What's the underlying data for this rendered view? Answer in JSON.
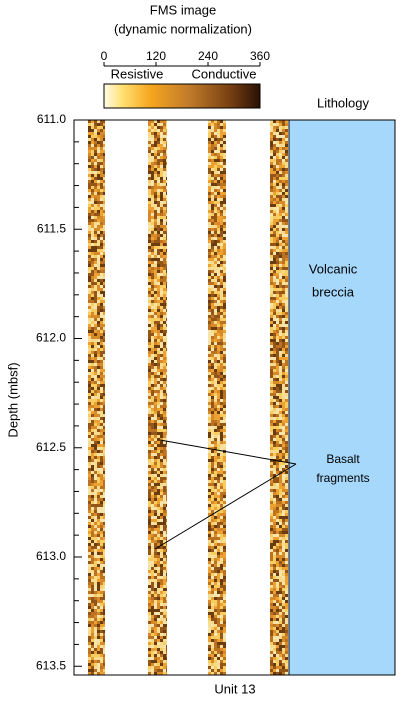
{
  "header": {
    "title": "FMS image",
    "subtitle": "(dynamic normalization)"
  },
  "colorbar": {
    "range": [
      0,
      360
    ],
    "ticks": [
      0,
      120,
      240,
      360
    ],
    "low_label": "Resistive",
    "high_label": "Conductive"
  },
  "depth_axis": {
    "label": "Depth (mbsf)",
    "ylim": [
      611.0,
      613.54
    ],
    "ticks": [
      {
        "value": 611.0,
        "label": "611.0"
      },
      {
        "value": 611.5,
        "label": "611.5"
      },
      {
        "value": 612.0,
        "label": "612.0"
      },
      {
        "value": 612.5,
        "label": "612.5"
      },
      {
        "value": 613.0,
        "label": "613.0"
      },
      {
        "value": 613.5,
        "label": "613.5"
      }
    ]
  },
  "lithology": {
    "title": "Lithology",
    "unit": [
      "Volcanic",
      "breccia"
    ]
  },
  "annotation": [
    "Basalt",
    "fragments"
  ],
  "footer": "Unit 13"
}
